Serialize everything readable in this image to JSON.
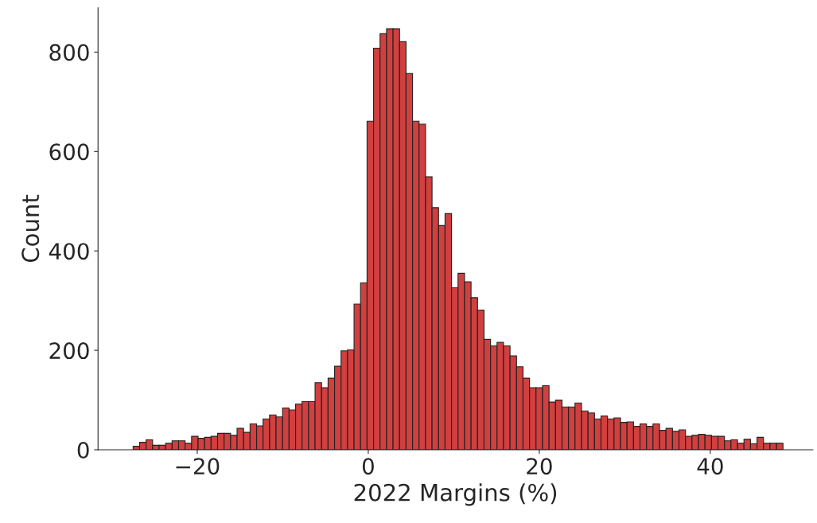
{
  "chart_data": {
    "type": "histogram",
    "xlabel": "2022 Margins (%)",
    "ylabel": "Count",
    "color": "#d13f3f",
    "bins": [
      -27.5,
      -26.74,
      -25.98,
      -25.22,
      -24.46,
      -23.7,
      -22.94,
      -22.18,
      -21.42,
      -20.66,
      -19.9,
      -19.14,
      -18.38,
      -17.62,
      -16.86,
      -16.1,
      -15.34,
      -14.58,
      -13.82,
      -13.06,
      -12.3,
      -11.54,
      -10.78,
      -10.02,
      -9.26,
      -8.5,
      -7.74,
      -6.98,
      -6.22,
      -5.46,
      -4.7,
      -3.94,
      -3.18,
      -2.42,
      -1.66,
      -0.9,
      -0.14,
      0.62,
      1.38,
      2.14,
      2.9,
      3.66,
      4.42,
      5.18,
      5.94,
      6.7,
      7.46,
      8.22,
      8.98,
      9.74,
      10.5,
      11.26,
      12.02,
      12.78,
      13.54,
      14.3,
      15.06,
      15.82,
      16.58,
      17.34,
      18.1,
      18.86,
      19.62,
      20.38,
      21.14,
      21.9,
      22.66,
      23.42,
      24.18,
      24.94,
      25.7,
      26.46,
      27.22,
      27.98,
      28.74,
      29.5,
      30.26,
      31.02,
      31.78,
      32.54,
      33.3,
      34.06,
      34.82,
      35.58,
      36.34,
      37.1,
      37.86,
      38.62,
      39.38,
      40.14,
      40.9,
      41.66,
      42.42,
      43.18,
      43.94,
      44.7,
      45.46,
      46.22,
      46.98,
      47.74,
      48.5
    ],
    "values": [
      7,
      15,
      20,
      9,
      9,
      13,
      18,
      18,
      13,
      27,
      23,
      25,
      27,
      33,
      33,
      29,
      43,
      35,
      52,
      48,
      62,
      70,
      66,
      84,
      80,
      92,
      97,
      97,
      135,
      125,
      144,
      168,
      199,
      201,
      293,
      336,
      661,
      808,
      837,
      847,
      847,
      821,
      757,
      661,
      655,
      549,
      487,
      451,
      475,
      326,
      355,
      338,
      306,
      281,
      222,
      209,
      216,
      209,
      189,
      167,
      144,
      125,
      125,
      129,
      96,
      100,
      86,
      86,
      94,
      78,
      74,
      62,
      68,
      62,
      64,
      55,
      56,
      47,
      52,
      47,
      52,
      39,
      43,
      37,
      40,
      27,
      29,
      31,
      29,
      27,
      27,
      18,
      20,
      13,
      21,
      12,
      25,
      13,
      13,
      13
    ],
    "xlim": [
      -31.6,
      52.0
    ],
    "ylim": [
      0,
      889
    ],
    "xticks": [
      {
        "value": -20,
        "label": "−20"
      },
      0,
      20,
      40
    ],
    "yticks": [
      0,
      200,
      400,
      600,
      800
    ]
  }
}
